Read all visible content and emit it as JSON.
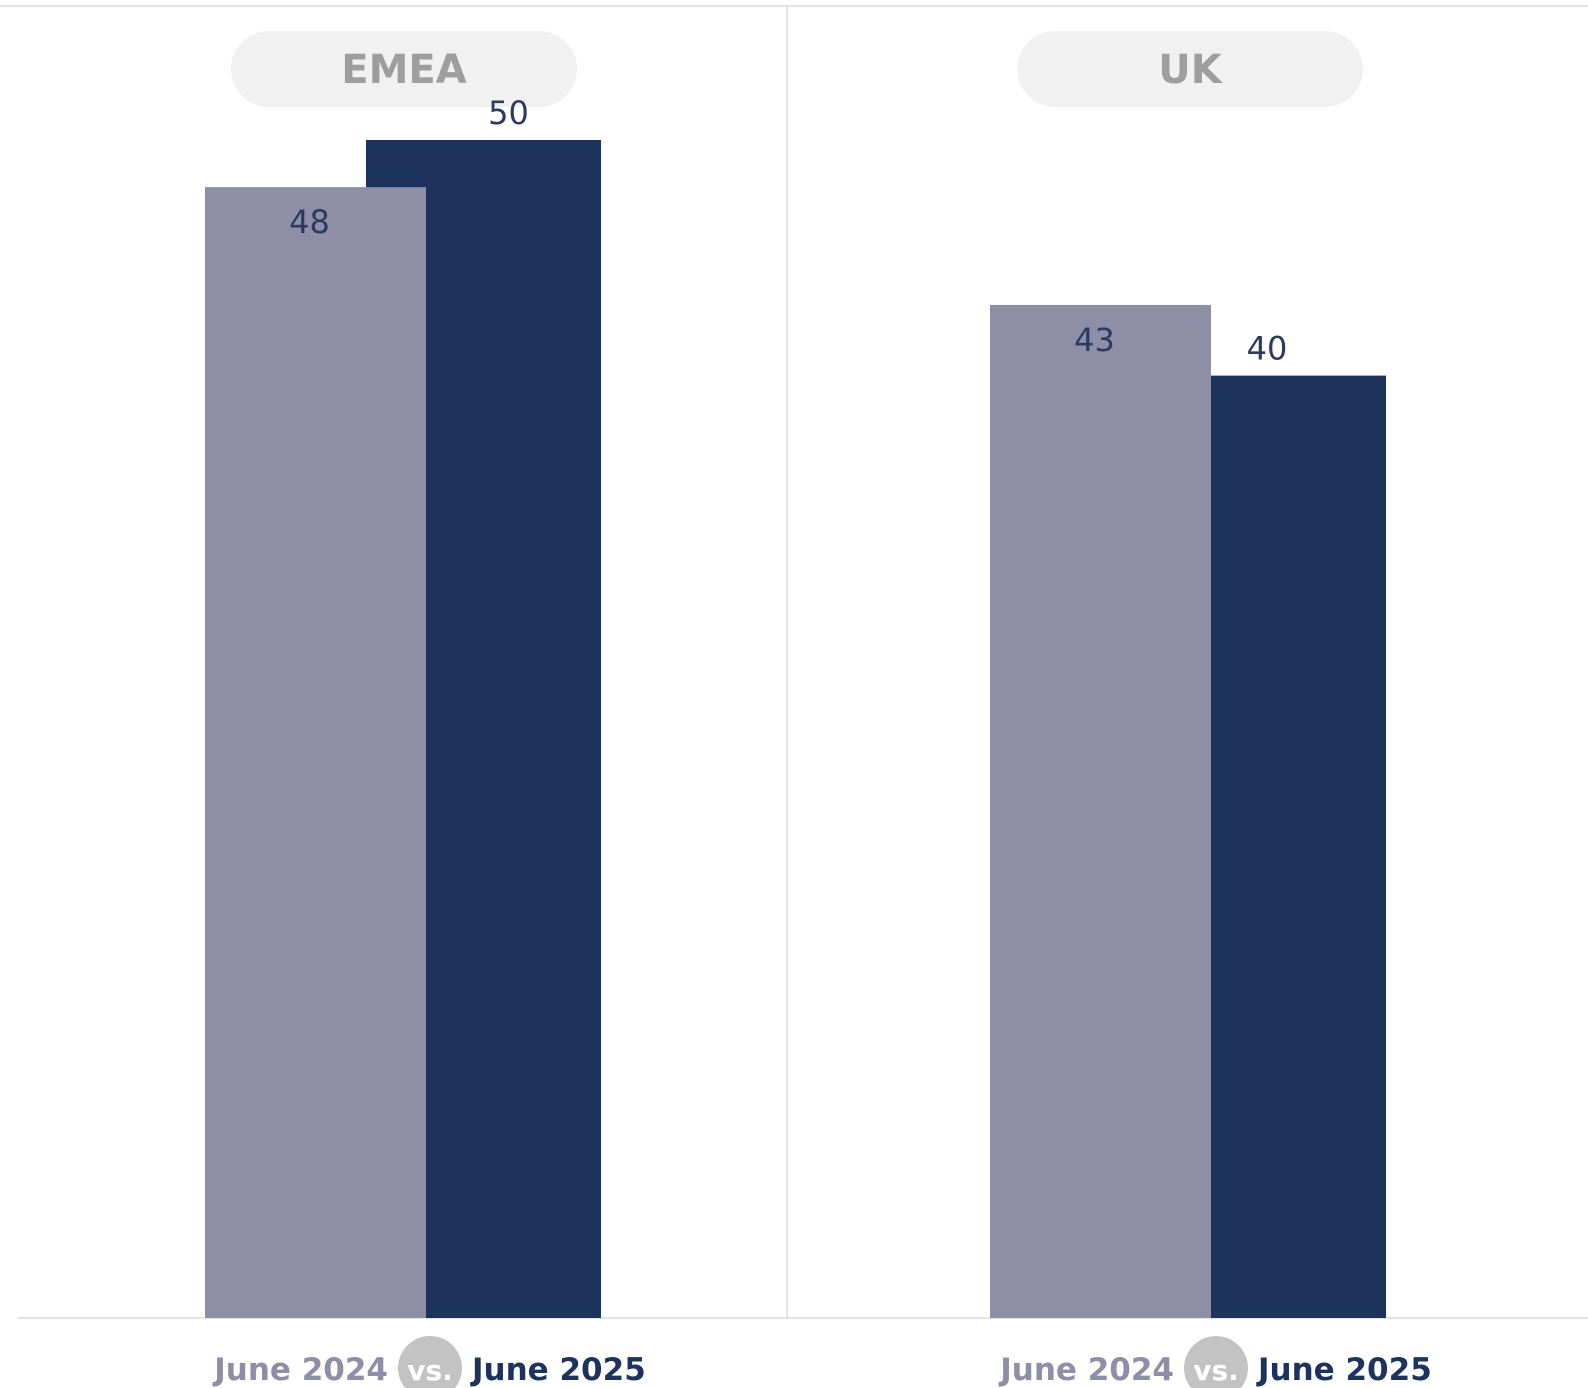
{
  "colors": {
    "june_2024": "#8e8ea6",
    "june_2025": "#1d325c",
    "pill_bg": "#f1f1f1",
    "pill_text": "#9e9e9e",
    "vs_badge_bg": "#c3c3c3",
    "vs_badge_text": "#ffffff",
    "value_label": "#2b3a5e",
    "divider": "#dcdcdc"
  },
  "chart_data": {
    "type": "bar",
    "series_names": [
      "June 2024",
      "June 2025"
    ],
    "panels": [
      {
        "region": "EMEA",
        "values": [
          48,
          50
        ],
        "legend": {
          "left": "June 2024",
          "vs": "vs.",
          "right": "June 2025"
        }
      },
      {
        "region": "UK",
        "values": [
          43,
          40
        ],
        "legend": {
          "left": "June 2024",
          "vs": "vs.",
          "right": "June 2025"
        }
      }
    ],
    "ylim": [
      0,
      60
    ],
    "grid": false
  }
}
